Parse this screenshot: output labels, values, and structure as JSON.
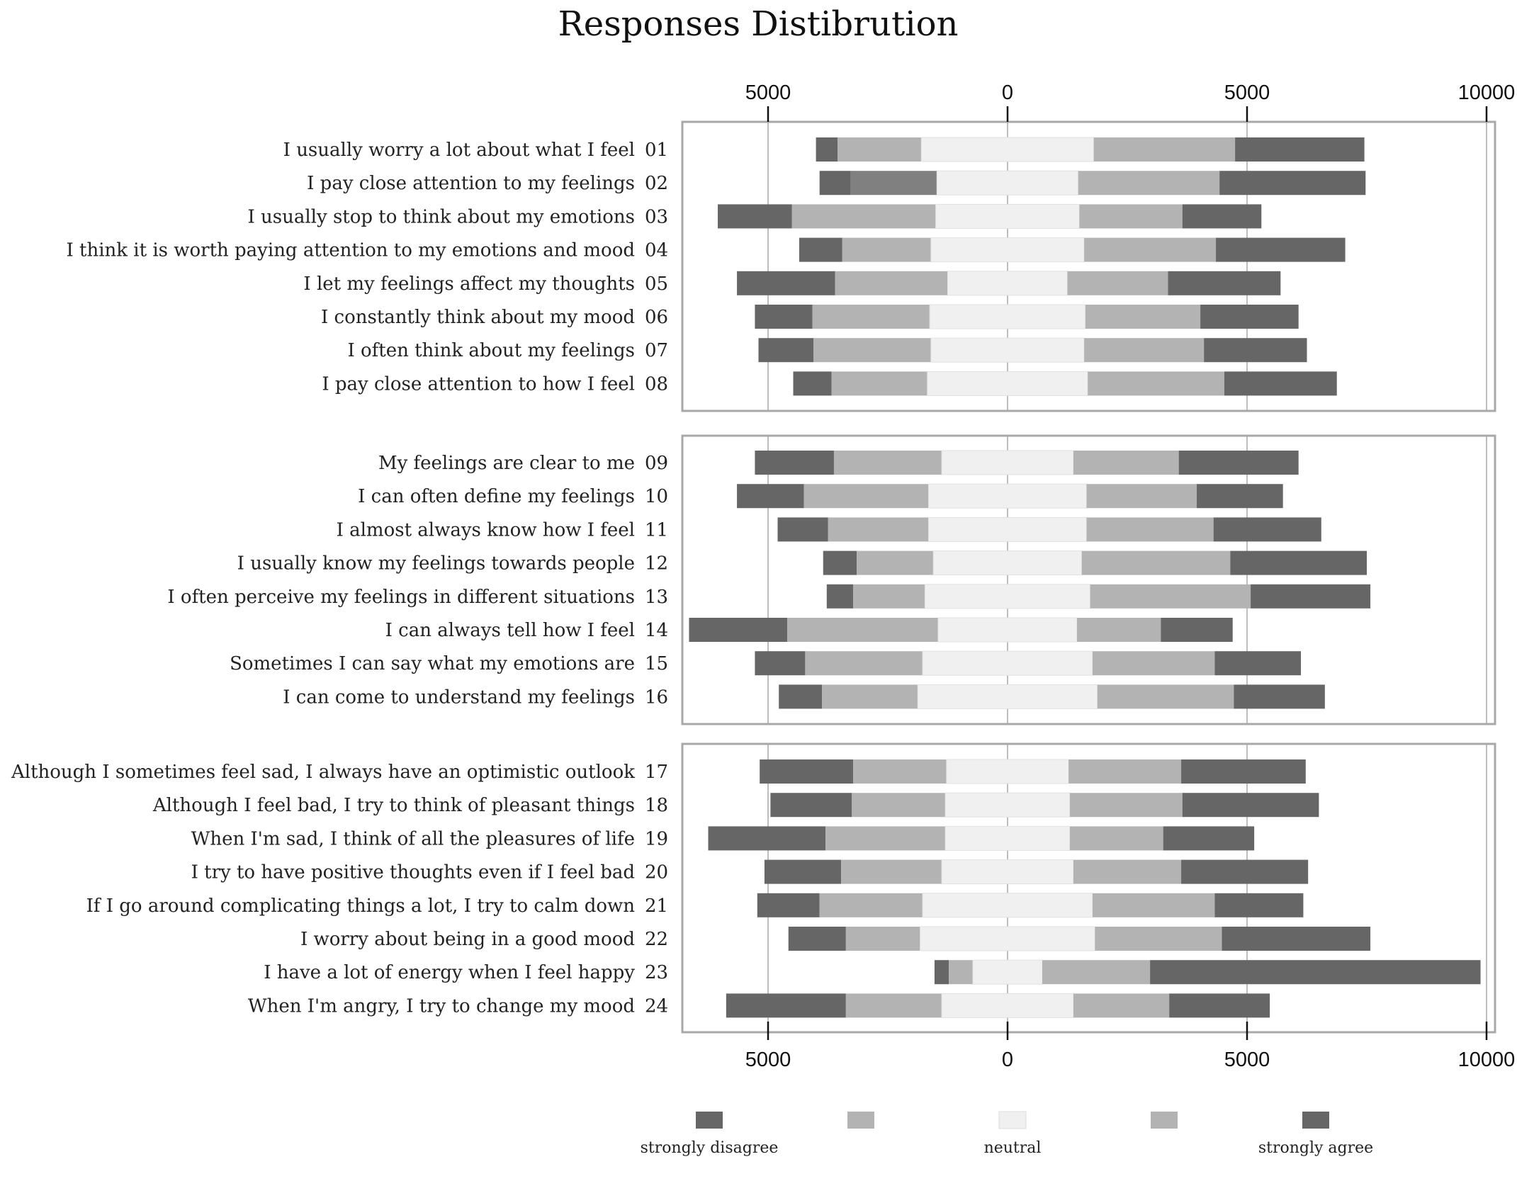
{
  "chart_data": {
    "type": "bar",
    "stacking": "diverging",
    "title": "Responses Distibrution",
    "xlim": [
      -6000,
      10000
    ],
    "x_ticks": [
      {
        "value": -5000,
        "label": "5000"
      },
      {
        "value": 0,
        "label": "0"
      },
      {
        "value": 5000,
        "label": "5000"
      },
      {
        "value": 10000,
        "label": "10000"
      }
    ],
    "legend": {
      "position": "bottom",
      "entries": [
        {
          "label": "strongly disagree",
          "color": "#666666"
        },
        {
          "label": "",
          "color": "#b3b3b3"
        },
        {
          "label": "neutral",
          "color": "#f0f0f0"
        },
        {
          "label": "",
          "color": "#b3b3b3"
        },
        {
          "label": "strongly agree",
          "color": "#666666"
        }
      ]
    },
    "category_colors": [
      "#666666",
      "#b3b3b3",
      "#f0f0f0",
      "#b3b3b3",
      "#666666"
    ],
    "groups": [
      {
        "name": "group-1",
        "items": [
          {
            "num": "01",
            "label": "I usually worry a lot about what I feel",
            "values": [
              450,
              1750,
              3600,
              2950,
              2700
            ]
          },
          {
            "num": "02",
            "label": "I pay close attention to my feelings",
            "values": [
              650,
              1800,
              2950,
              2950,
              3050
            ],
            "highlight_second": true
          },
          {
            "num": "03",
            "label": "I usually stop to think about my emotions",
            "values": [
              1550,
              3000,
              3000,
              2150,
              1650
            ]
          },
          {
            "num": "04",
            "label": "I think it is worth paying attention to my emotions and mood",
            "values": [
              900,
              1850,
              3200,
              2750,
              2700
            ]
          },
          {
            "num": "05",
            "label": "I let my feelings affect my thoughts",
            "values": [
              2050,
              2350,
              2500,
              2100,
              2350
            ]
          },
          {
            "num": "06",
            "label": "I constantly think about my mood",
            "values": [
              1200,
              2450,
              3250,
              2400,
              2050
            ]
          },
          {
            "num": "07",
            "label": "I often think about my feelings",
            "values": [
              1150,
              2450,
              3200,
              2500,
              2150
            ]
          },
          {
            "num": "08",
            "label": "I pay close attention to how I feel",
            "values": [
              800,
              2000,
              3350,
              2850,
              2350
            ]
          }
        ]
      },
      {
        "name": "group-2",
        "items": [
          {
            "num": "09",
            "label": "My feelings are clear to me",
            "values": [
              1650,
              2250,
              2750,
              2200,
              2500
            ]
          },
          {
            "num": "10",
            "label": "I can often define my feelings",
            "values": [
              1400,
              2600,
              3300,
              2300,
              1800
            ]
          },
          {
            "num": "11",
            "label": "I almost always know how I feel",
            "values": [
              1050,
              2100,
              3300,
              2650,
              2250
            ]
          },
          {
            "num": "12",
            "label": "I usually know my feelings towards people",
            "values": [
              700,
              1600,
              3100,
              3100,
              2850
            ]
          },
          {
            "num": "13",
            "label": "I often perceive my feelings in different situations",
            "values": [
              550,
              1500,
              3450,
              3350,
              2500
            ]
          },
          {
            "num": "14",
            "label": "I can always tell how I feel",
            "values": [
              2050,
              3150,
              2900,
              1750,
              1500
            ]
          },
          {
            "num": "15",
            "label": "Sometimes I can say what my emotions are",
            "values": [
              1050,
              2450,
              3550,
              2550,
              1800
            ]
          },
          {
            "num": "16",
            "label": "I can come to understand my feelings",
            "values": [
              900,
              2000,
              3750,
              2850,
              1900
            ]
          }
        ]
      },
      {
        "name": "group-3",
        "items": [
          {
            "num": "17",
            "label": "Although I sometimes feel sad, I always have an optimistic outlook",
            "values": [
              1950,
              1950,
              2550,
              2350,
              2600
            ]
          },
          {
            "num": "18",
            "label": "Although I feel bad, I try to think of pleasant things",
            "values": [
              1700,
              1950,
              2600,
              2350,
              2850
            ]
          },
          {
            "num": "19",
            "label": "When I'm sad, I think of all the pleasures of life",
            "values": [
              2450,
              2500,
              2600,
              1950,
              1900
            ]
          },
          {
            "num": "20",
            "label": "I try to have positive thoughts even if I feel bad",
            "values": [
              1600,
              2100,
              2750,
              2250,
              2650
            ]
          },
          {
            "num": "21",
            "label": "If I go around complicating things a lot, I try to calm down",
            "values": [
              1300,
              2150,
              3550,
              2550,
              1850
            ]
          },
          {
            "num": "22",
            "label": "I worry about being in a good mood",
            "values": [
              1200,
              1550,
              3650,
              2650,
              3100
            ]
          },
          {
            "num": "23",
            "label": "I have a lot of energy when I feel happy",
            "values": [
              300,
              500,
              1450,
              2250,
              6900
            ]
          },
          {
            "num": "24",
            "label": "When I'm angry, I try to change my mood",
            "values": [
              2500,
              2000,
              2750,
              2000,
              2100
            ]
          }
        ]
      }
    ]
  }
}
